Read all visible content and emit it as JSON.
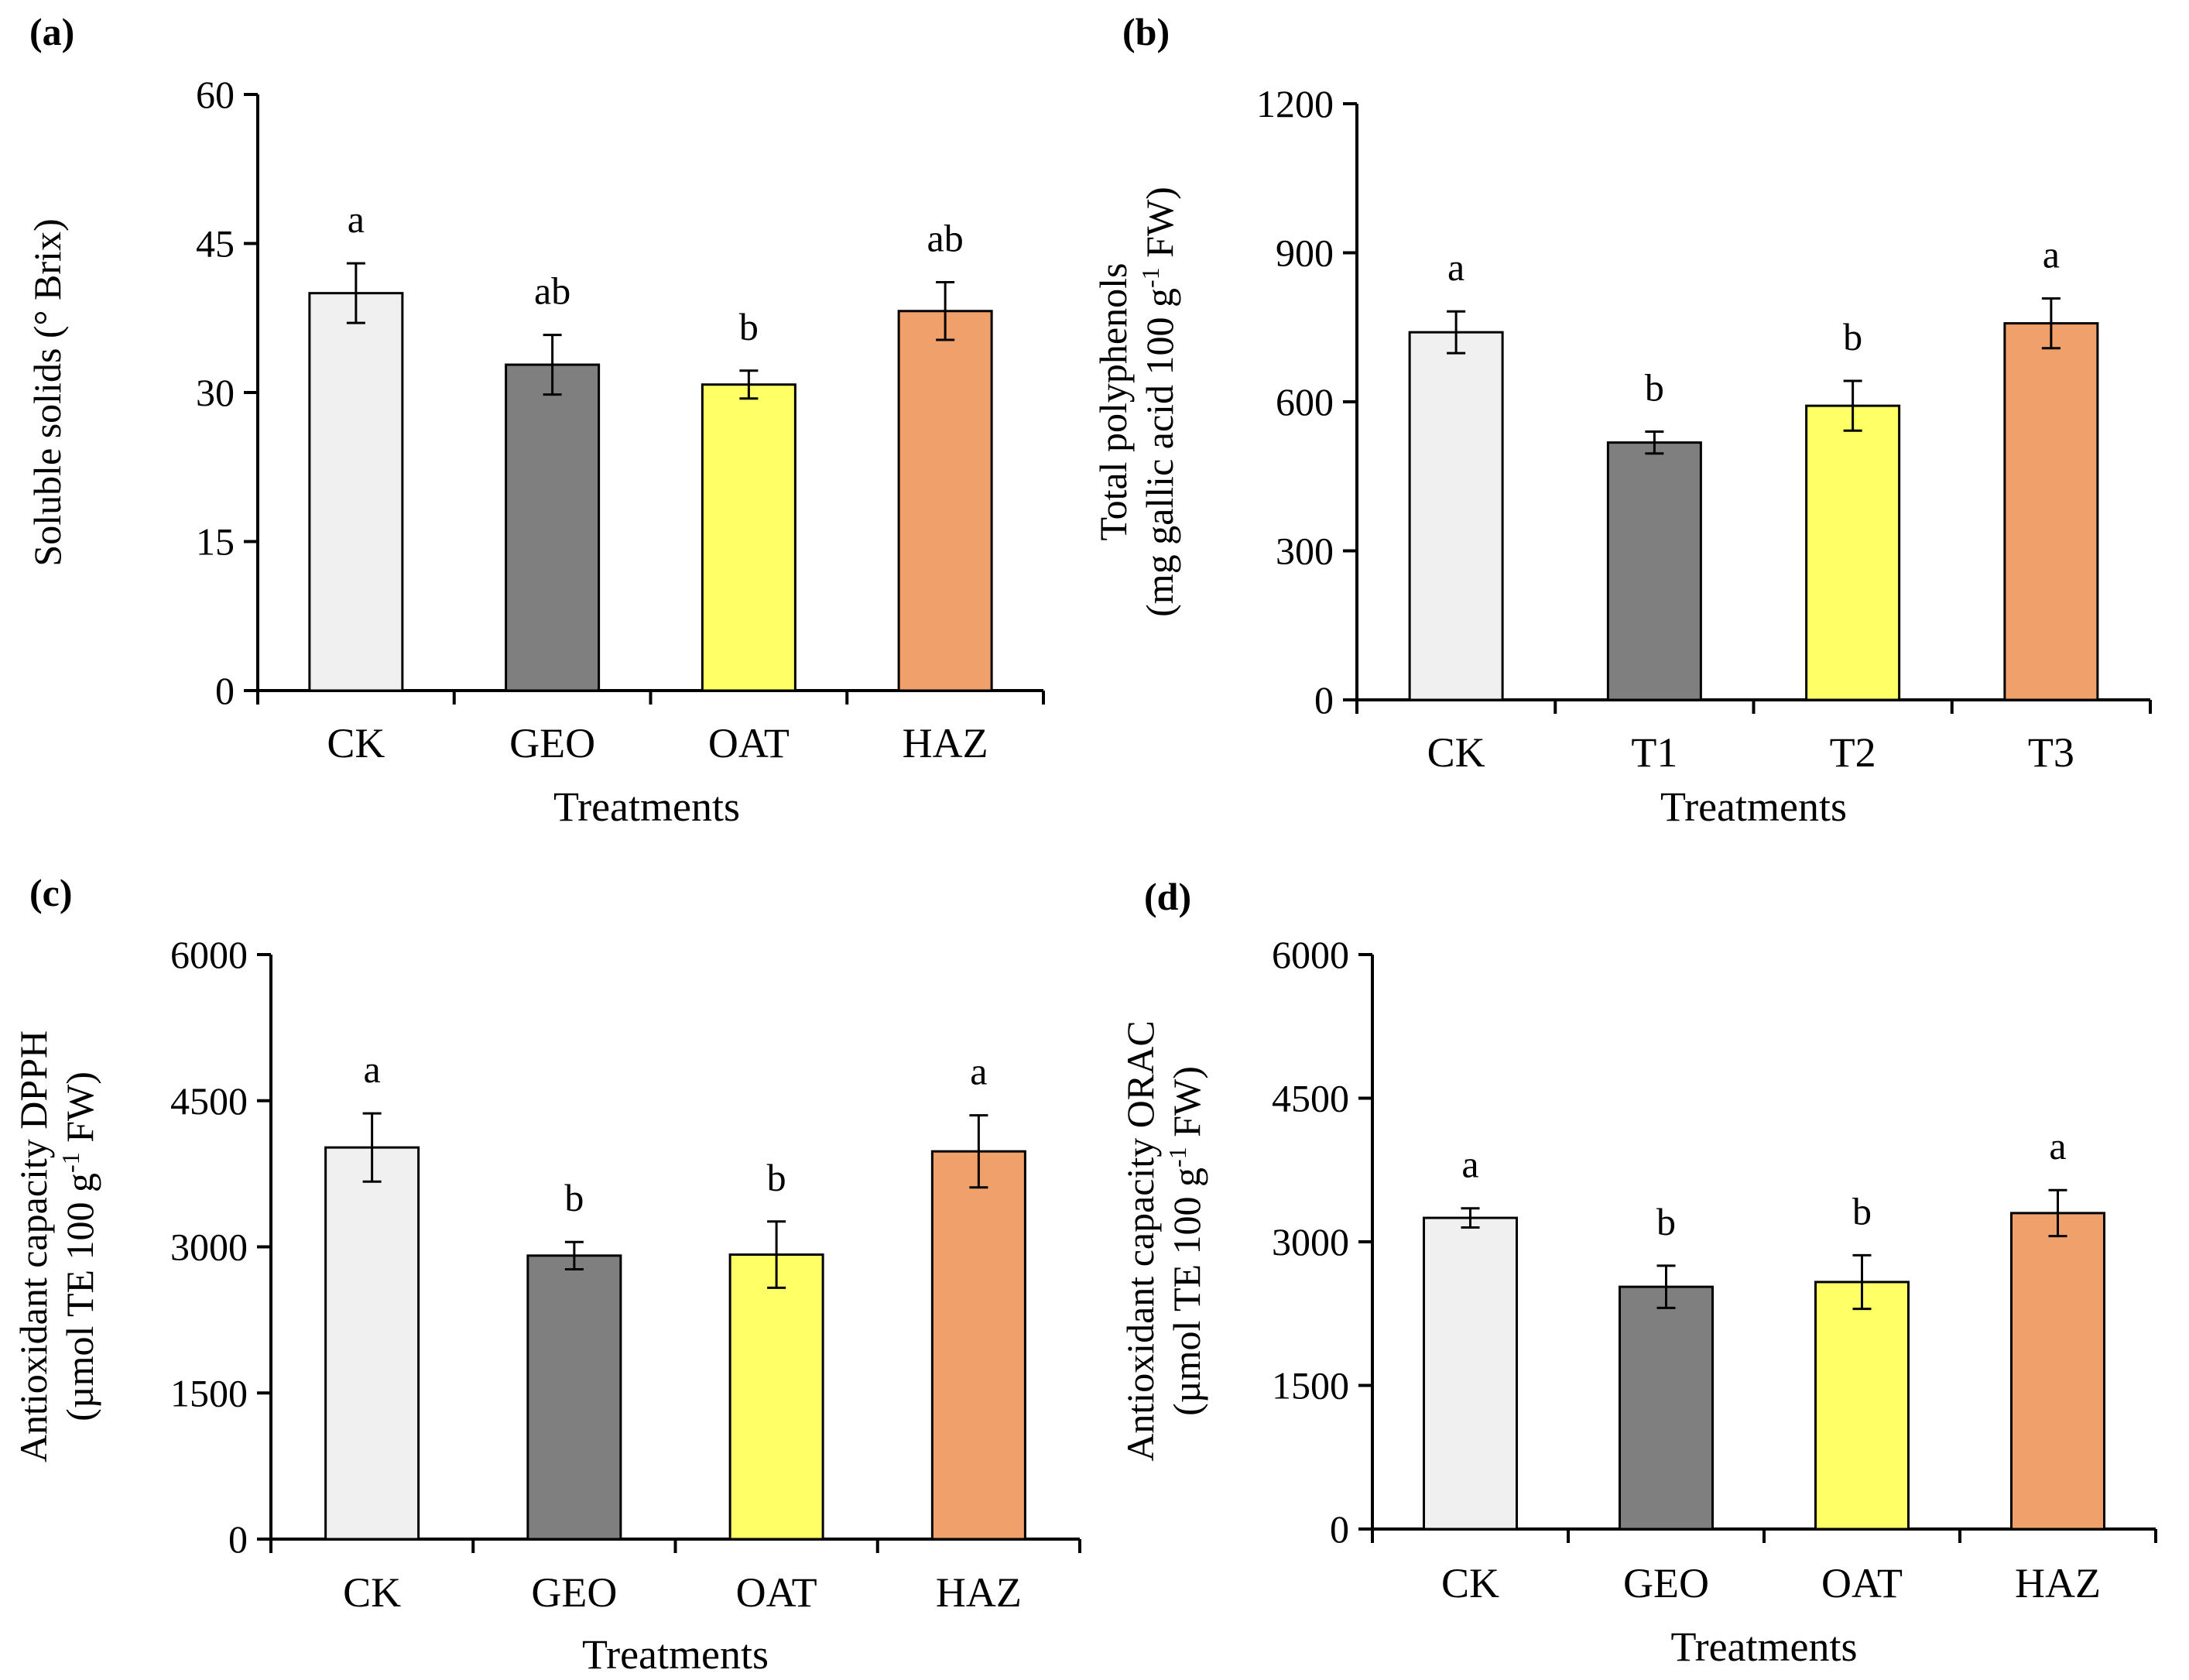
{
  "colors": {
    "CK": "#f0f0f0",
    "GEO": "#7f7f7f",
    "OAT": "#ffff66",
    "HAZ": "#f0a06a",
    "axis": "#000000"
  },
  "chart_data": [
    {
      "id": "a",
      "type": "bar",
      "panel_label": "(a)",
      "title": "",
      "xlabel": "Treatments",
      "ylabel_lines": [
        "Soluble solids (° Brix)"
      ],
      "ylim": [
        0,
        60
      ],
      "yticks": [
        0,
        15,
        30,
        45,
        60
      ],
      "ytick_labels": [
        "0",
        "15",
        "30",
        "45",
        "60"
      ],
      "categories": [
        "CK",
        "GEO",
        "OAT",
        "HAZ"
      ],
      "values": [
        40,
        32.8,
        30.8,
        38.2
      ],
      "errors": [
        3.0,
        3.0,
        1.4,
        2.9
      ],
      "letters": [
        "a",
        "ab",
        "b",
        "ab"
      ],
      "fill_keys": [
        "CK",
        "GEO",
        "OAT",
        "HAZ"
      ]
    },
    {
      "id": "b",
      "type": "bar",
      "panel_label": "(b)",
      "title": "",
      "xlabel": "Treatments",
      "ylabel_lines": [
        "Total polyphenols",
        "(mg gallic acid 100 g",
        "-1",
        " FW)"
      ],
      "ylim": [
        0,
        1200
      ],
      "yticks": [
        0,
        300,
        600,
        900,
        1200
      ],
      "ytick_labels": [
        "0",
        "300",
        "600",
        "900",
        "1200"
      ],
      "categories": [
        "CK",
        "T1",
        "T2",
        "T3"
      ],
      "values": [
        740,
        518,
        592,
        758
      ],
      "errors": [
        42,
        22,
        50,
        50
      ],
      "letters": [
        "a",
        "b",
        "b",
        "a"
      ],
      "fill_keys": [
        "CK",
        "GEO",
        "OAT",
        "HAZ"
      ]
    },
    {
      "id": "c",
      "type": "bar",
      "panel_label": "(c)",
      "title": "",
      "xlabel": "Treatments",
      "ylabel_lines": [
        "Antioxidant capacity DPPH",
        "(µmol TE 100 g",
        "-1",
        " FW)"
      ],
      "ylim": [
        0,
        6000
      ],
      "yticks": [
        0,
        1500,
        3000,
        4500,
        6000
      ],
      "ytick_labels": [
        "0",
        "1500",
        "3000",
        "4500",
        "6000"
      ],
      "categories": [
        "CK",
        "GEO",
        "OAT",
        "HAZ"
      ],
      "values": [
        4020,
        2910,
        2920,
        3980
      ],
      "errors": [
        350,
        140,
        340,
        370
      ],
      "letters": [
        "a",
        "b",
        "b",
        "a"
      ],
      "fill_keys": [
        "CK",
        "GEO",
        "OAT",
        "HAZ"
      ]
    },
    {
      "id": "d",
      "type": "bar",
      "panel_label": "(d)",
      "title": "",
      "xlabel": "Treatments",
      "ylabel_lines": [
        "Antioxidant capacity ORAC",
        "(µmol TE 100 g",
        "-1",
        " FW)"
      ],
      "ylim": [
        0,
        6000
      ],
      "yticks": [
        0,
        1500,
        3000,
        4500,
        6000
      ],
      "ytick_labels": [
        "0",
        "1500",
        "3000",
        "4500",
        "6000"
      ],
      "categories": [
        "CK",
        "GEO",
        "OAT",
        "HAZ"
      ],
      "values": [
        3250,
        2530,
        2580,
        3300
      ],
      "errors": [
        100,
        220,
        280,
        240
      ],
      "letters": [
        "a",
        "b",
        "b",
        "a"
      ],
      "fill_keys": [
        "CK",
        "GEO",
        "OAT",
        "HAZ"
      ]
    }
  ]
}
